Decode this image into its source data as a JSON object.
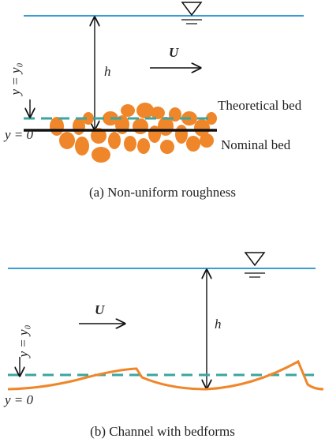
{
  "panels": [
    {
      "caption": "(a) Non-uniform roughness",
      "depth_label": "h",
      "velocity_label": "U",
      "reference_label": "y = y₀",
      "origin_label": "y = 0",
      "theoretical_bed_label": "Theoretical bed",
      "nominal_bed_label": "Nominal bed"
    },
    {
      "caption": "(b) Channel with bedforms",
      "depth_label": "h",
      "velocity_label": "U",
      "reference_label": "y = y₀",
      "origin_label": "y = 0"
    }
  ]
}
